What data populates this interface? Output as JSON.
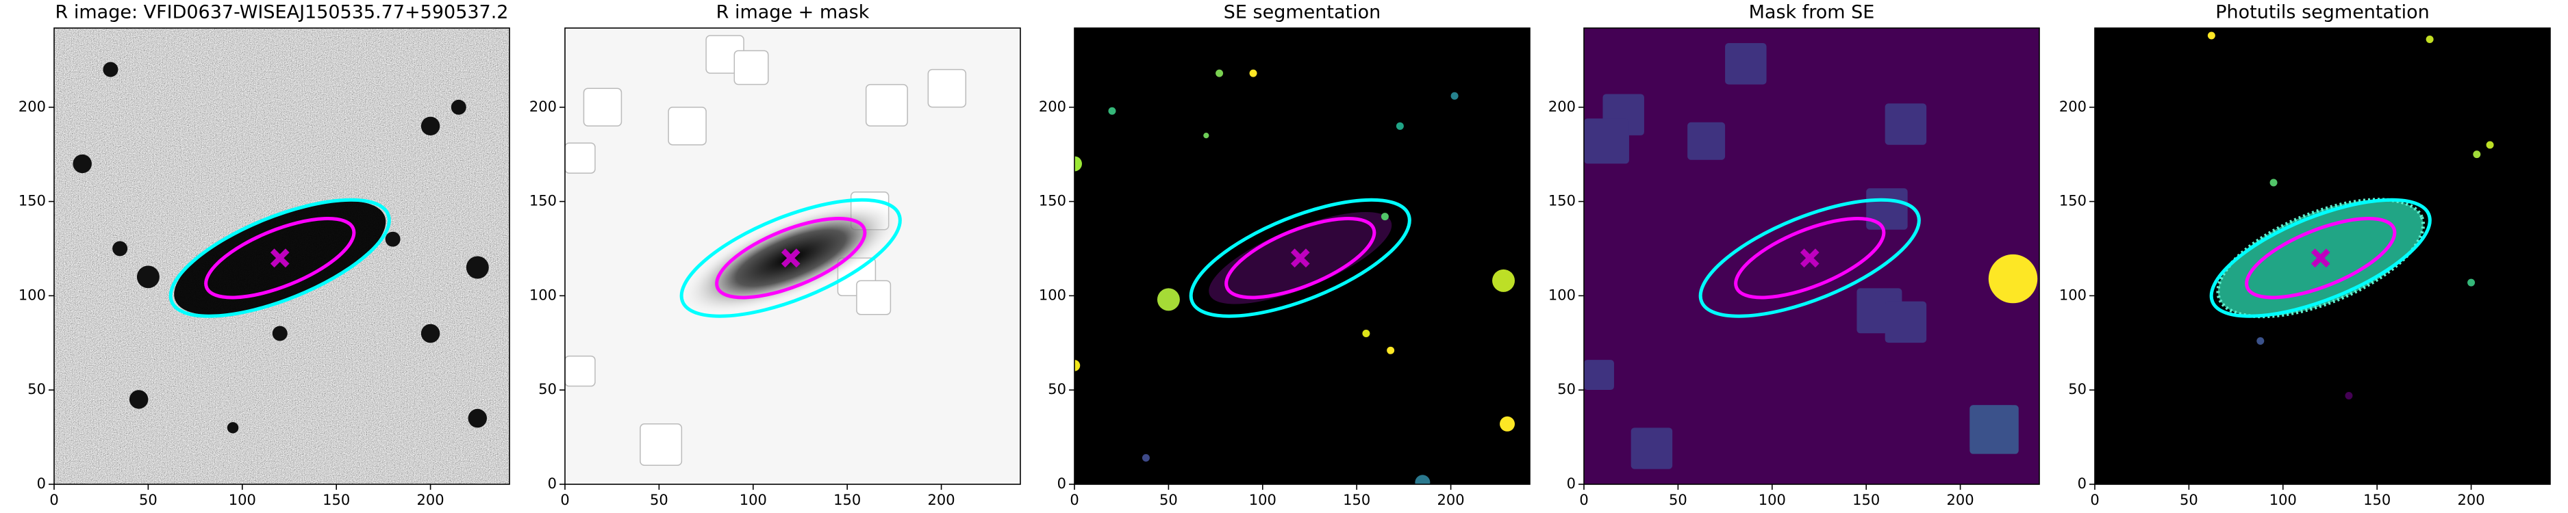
{
  "chart_data": [
    {
      "type": "image",
      "title": "R image: VFID0637-WISEAJ150535.77+590537.2",
      "xlim": [
        0,
        242
      ],
      "ylim": [
        0,
        242
      ],
      "xticks": [
        0,
        50,
        100,
        150,
        200
      ],
      "yticks": [
        0,
        50,
        100,
        150,
        200
      ],
      "ellipses": [
        {
          "cx": 120,
          "cy": 120,
          "a": 62,
          "b": 22,
          "angle": 22,
          "color": "#00ffff"
        },
        {
          "cx": 120,
          "cy": 120,
          "a": 42,
          "b": 15,
          "angle": 22,
          "color": "#ff00ff"
        }
      ],
      "marker": {
        "x": 120,
        "y": 120,
        "color": "#bf00bf"
      }
    },
    {
      "type": "image",
      "title": "R image + mask",
      "xlim": [
        0,
        242
      ],
      "ylim": [
        0,
        242
      ],
      "xticks": [
        0,
        50,
        100,
        150,
        200
      ],
      "yticks": [
        0,
        50,
        100,
        150,
        200
      ],
      "ellipses": [
        {
          "cx": 120,
          "cy": 120,
          "a": 62,
          "b": 22,
          "angle": 22,
          "color": "#00ffff"
        },
        {
          "cx": 120,
          "cy": 120,
          "a": 42,
          "b": 15,
          "angle": 22,
          "color": "#ff00ff"
        }
      ],
      "marker": {
        "x": 120,
        "y": 120,
        "color": "#bf00bf"
      }
    },
    {
      "type": "image",
      "title": "SE segmentation",
      "xlim": [
        0,
        242
      ],
      "ylim": [
        0,
        242
      ],
      "xticks": [
        0,
        50,
        100,
        150,
        200
      ],
      "yticks": [
        0,
        50,
        100,
        150,
        200
      ],
      "ellipses": [
        {
          "cx": 120,
          "cy": 120,
          "a": 62,
          "b": 22,
          "angle": 22,
          "color": "#00ffff"
        },
        {
          "cx": 120,
          "cy": 120,
          "a": 42,
          "b": 15,
          "angle": 22,
          "color": "#ff00ff"
        }
      ],
      "marker": {
        "x": 120,
        "y": 120,
        "color": "#bf00bf"
      }
    },
    {
      "type": "image",
      "title": "Mask from SE",
      "xlim": [
        0,
        242
      ],
      "ylim": [
        0,
        242
      ],
      "xticks": [
        0,
        50,
        100,
        150,
        200
      ],
      "yticks": [
        0,
        50,
        100,
        150,
        200
      ],
      "ellipses": [
        {
          "cx": 120,
          "cy": 120,
          "a": 62,
          "b": 22,
          "angle": 22,
          "color": "#00ffff"
        },
        {
          "cx": 120,
          "cy": 120,
          "a": 42,
          "b": 15,
          "angle": 22,
          "color": "#ff00ff"
        }
      ],
      "marker": {
        "x": 120,
        "y": 120,
        "color": "#bf00bf"
      }
    },
    {
      "type": "image",
      "title": "Photutils segmentation",
      "xlim": [
        0,
        242
      ],
      "ylim": [
        0,
        242
      ],
      "xticks": [
        0,
        50,
        100,
        150,
        200
      ],
      "yticks": [
        0,
        50,
        100,
        150,
        200
      ],
      "ellipses": [
        {
          "cx": 120,
          "cy": 120,
          "a": 62,
          "b": 22,
          "angle": 22,
          "color": "#00ffff"
        },
        {
          "cx": 120,
          "cy": 120,
          "a": 42,
          "b": 15,
          "angle": 22,
          "color": "#ff00ff"
        }
      ],
      "marker": {
        "x": 120,
        "y": 120,
        "color": "#bf00bf"
      }
    }
  ]
}
